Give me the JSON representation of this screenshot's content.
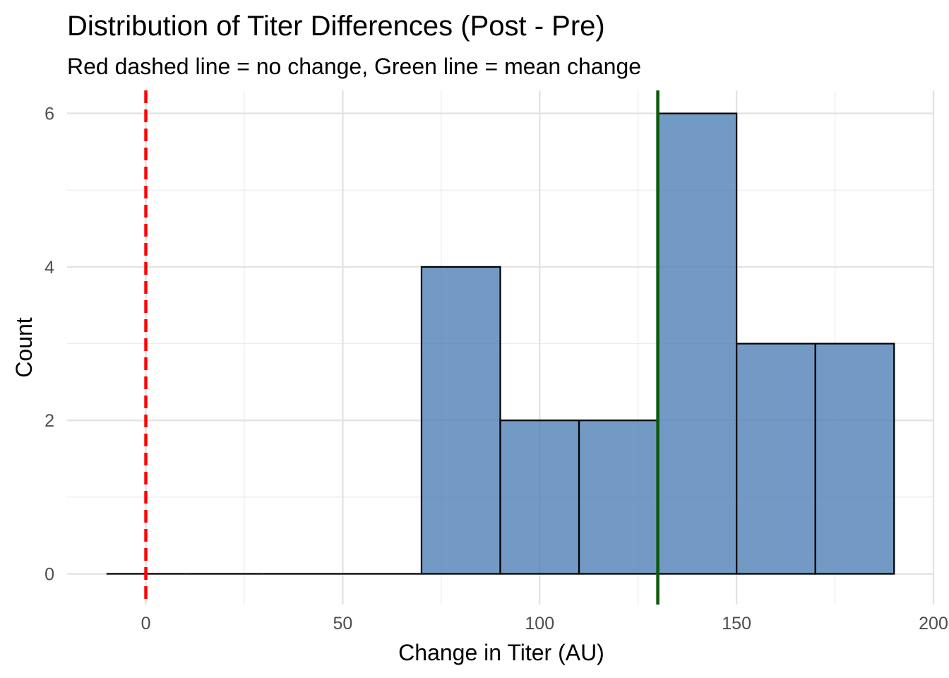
{
  "chart_data": {
    "type": "bar",
    "subtype": "histogram",
    "title": "Distribution of Titer Differences (Post - Pre)",
    "subtitle": "Red dashed line = no change, Green line = mean change",
    "xlabel": "Change in Titer (AU)",
    "ylabel": "Count",
    "xlim": [
      -20,
      200
    ],
    "ylim": [
      -0.4,
      6.3
    ],
    "x_ticks": [
      0,
      50,
      100,
      150,
      200
    ],
    "x_tick_labels": [
      "0",
      "50",
      "100",
      "150",
      "200"
    ],
    "y_ticks": [
      0,
      2,
      4,
      6
    ],
    "y_tick_labels": [
      "0",
      "2",
      "4",
      "6"
    ],
    "bin_width": 20,
    "bins": [
      {
        "x_start": -10,
        "x_end": 10,
        "count": 0
      },
      {
        "x_start": 10,
        "x_end": 30,
        "count": 0
      },
      {
        "x_start": 30,
        "x_end": 50,
        "count": 0
      },
      {
        "x_start": 50,
        "x_end": 70,
        "count": 0
      },
      {
        "x_start": 70,
        "x_end": 90,
        "count": 4
      },
      {
        "x_start": 90,
        "x_end": 110,
        "count": 2
      },
      {
        "x_start": 110,
        "x_end": 130,
        "count": 2
      },
      {
        "x_start": 130,
        "x_end": 150,
        "count": 6
      },
      {
        "x_start": 150,
        "x_end": 170,
        "count": 3
      },
      {
        "x_start": 170,
        "x_end": 190,
        "count": 3
      }
    ],
    "reference_lines": [
      {
        "label": "no change",
        "x": 0,
        "color": "#ff0000",
        "style": "dashed"
      },
      {
        "label": "mean change",
        "x": 130,
        "color": "#0b5a0b",
        "style": "solid"
      }
    ],
    "bar_fill": "#4a7eb3",
    "bar_stroke": "#000000",
    "grid": true,
    "legend": "none"
  }
}
